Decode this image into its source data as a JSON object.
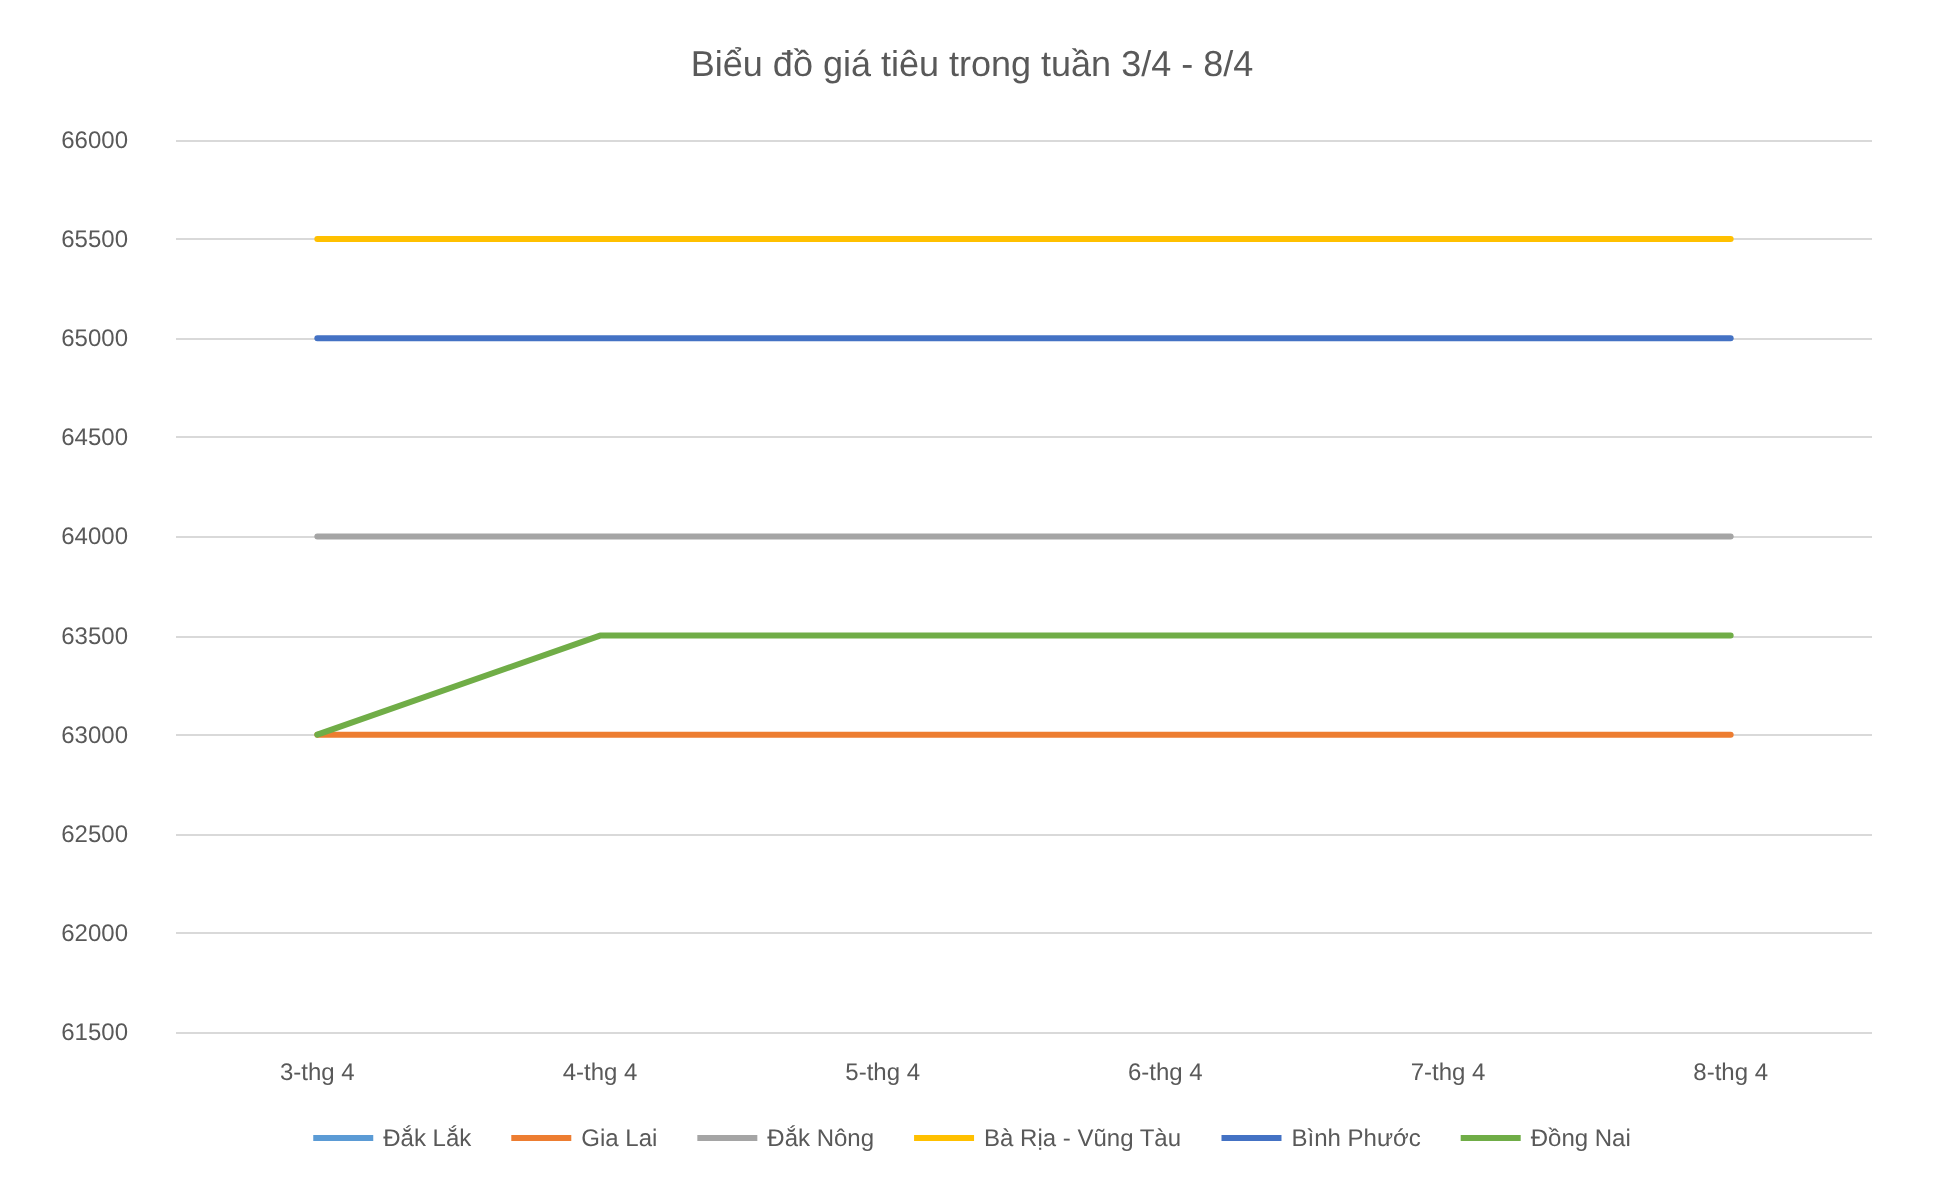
{
  "chart_data": {
    "type": "line",
    "title": "Biểu đồ giá tiêu trong tuần 3/4 - 8/4",
    "categories": [
      "3-thg 4",
      "4-thg 4",
      "5-thg 4",
      "6-thg 4",
      "7-thg 4",
      "8-thg 4"
    ],
    "series": [
      {
        "name": "Đắk Lắk",
        "color": "#5b9bd5",
        "values": [
          null,
          null,
          null,
          null,
          null,
          null
        ]
      },
      {
        "name": "Gia Lai",
        "color": "#ed7d31",
        "values": [
          63000,
          63000,
          63000,
          63000,
          63000,
          63000
        ]
      },
      {
        "name": "Đắk Nông",
        "color": "#a5a5a5",
        "values": [
          64000,
          64000,
          64000,
          64000,
          64000,
          64000
        ]
      },
      {
        "name": "Bà Rịa - Vũng Tàu",
        "color": "#ffc000",
        "values": [
          65500,
          65500,
          65500,
          65500,
          65500,
          65500
        ]
      },
      {
        "name": "Bình Phước",
        "color": "#4472c4",
        "values": [
          65000,
          65000,
          65000,
          65000,
          65000,
          65000
        ]
      },
      {
        "name": "Đồng Nai",
        "color": "#70ad47",
        "values": [
          63000,
          63500,
          63500,
          63500,
          63500,
          63500
        ]
      }
    ],
    "ylim": [
      61500,
      66000
    ],
    "yticks": [
      61500,
      62000,
      62500,
      63000,
      63500,
      64000,
      64500,
      65000,
      65500,
      66000
    ],
    "grid": "y",
    "legend": "bottom",
    "marker": "none",
    "line_style": "solid"
  }
}
